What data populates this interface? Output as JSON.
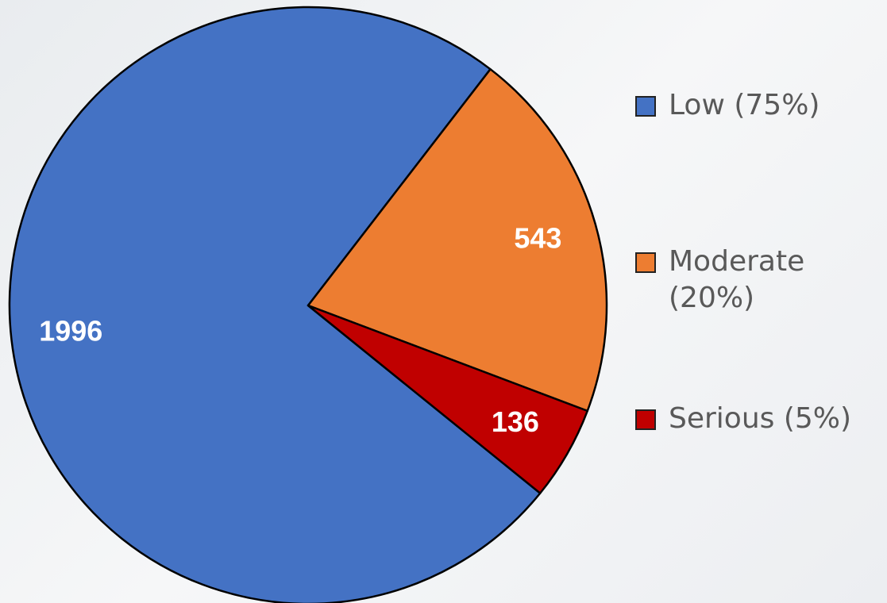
{
  "chart_data": {
    "type": "pie",
    "series": [
      {
        "name": "Low (75%)",
        "color": "#4472c4",
        "values": [
          1996
        ]
      },
      {
        "name": "Moderate (20%)",
        "color": "#ed7d31",
        "values": [
          543
        ]
      },
      {
        "name": "Serious (5%)",
        "color": "#c00000",
        "values": [
          136
        ]
      }
    ],
    "legend": "right"
  }
}
